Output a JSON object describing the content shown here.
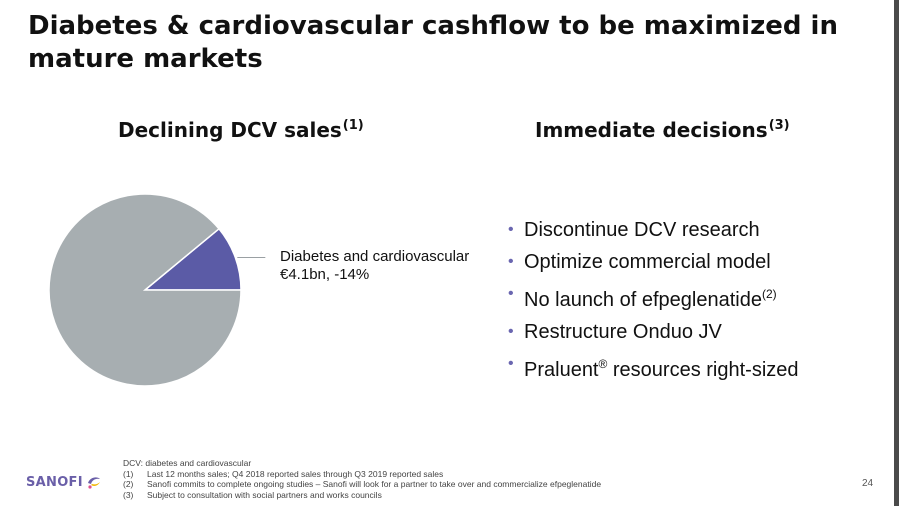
{
  "slide": {
    "title": "Diabetes & cardiovascular cashflow to be maximized in mature markets",
    "left_heading": "Declining DCV sales",
    "left_heading_sup": "(1)",
    "right_heading": "Immediate decisions",
    "right_heading_sup": "(3)",
    "page_number": "24"
  },
  "chart_data": {
    "type": "pie",
    "title": "",
    "slices": [
      {
        "label": "Diabetes and cardiovascular",
        "value": 11,
        "color": "#5b5ba6"
      },
      {
        "label": "",
        "value": 89,
        "color": "#a7aeb1"
      }
    ],
    "annotation": {
      "line1": "Diabetes and cardiovascular",
      "line2": "€4.1bn, -14%"
    }
  },
  "decisions": [
    {
      "text": "Discontinue DCV research",
      "sup": ""
    },
    {
      "text": "Optimize commercial model",
      "sup": ""
    },
    {
      "text": "No launch of efpeglenatide",
      "sup": "(2)"
    },
    {
      "text": "Restructure Onduo JV",
      "sup": ""
    },
    {
      "text": "Praluent",
      "sup": "®",
      "after": " resources right-sized"
    }
  ],
  "footnotes": {
    "intro": "DCV: diabetes and cardiovascular",
    "notes": [
      {
        "num": "(1)",
        "text": "Last 12 months sales; Q4 2018 reported sales through Q3 2019 reported sales"
      },
      {
        "num": "(2)",
        "text": "Sanofi commits to complete ongoing studies – Sanofi will look for a partner to take over and commercialize efpeglenatide"
      },
      {
        "num": "(3)",
        "text": "Subject to consultation with social partners and works councils"
      }
    ]
  },
  "logo": {
    "text": "SANOFI",
    "icon": "sanofi-bird-logo-icon"
  },
  "colors": {
    "accent": "#5b5ba6",
    "bullet": "#6a66b0",
    "pie_rest": "#a7aeb1",
    "logo": "#6a5fa8"
  }
}
